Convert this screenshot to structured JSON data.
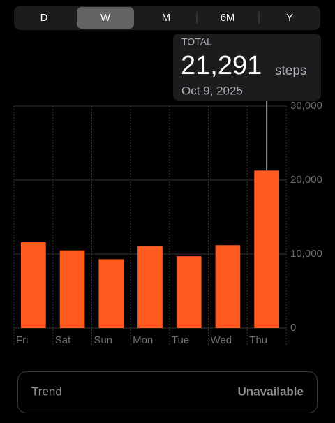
{
  "segments": [
    "D",
    "W",
    "M",
    "6M",
    "Y"
  ],
  "callout": {
    "label": "TOTAL",
    "value": "21,291",
    "unit": "steps",
    "date": "Oct 9, 2025"
  },
  "chart_data": {
    "type": "bar",
    "categories": [
      "Fri",
      "Sat",
      "Sun",
      "Mon",
      "Tue",
      "Wed",
      "Thu"
    ],
    "values": [
      11600,
      10500,
      9300,
      11100,
      9700,
      11200,
      21291
    ],
    "color": "#ff5a1f",
    "ylim": [
      0,
      30000
    ],
    "yticks": [
      0,
      {
        "value": 10000,
        "label": "10,000"
      },
      {
        "value": 20000,
        "label": "20,000"
      },
      {
        "value": 30000,
        "label": "30,000"
      }
    ],
    "grid": true
  },
  "trend": {
    "label": "Trend",
    "value": "Unavailable"
  }
}
